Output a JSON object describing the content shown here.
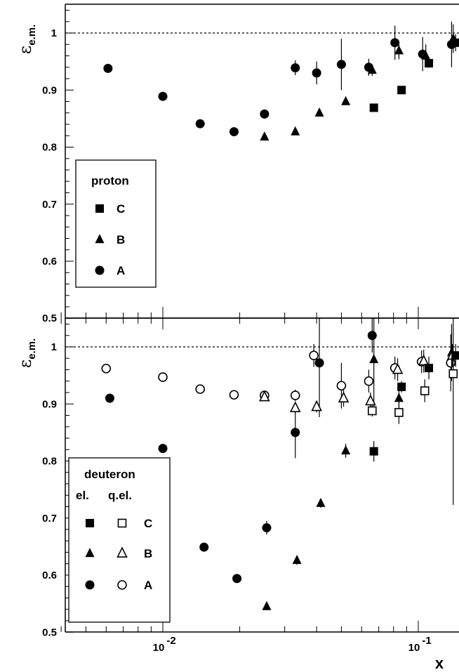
{
  "chart_data": [
    {
      "type": "scatter",
      "panel": "top",
      "ylabel_main": "ε",
      "ylabel_sub": "e.m.",
      "ylim": [
        0.5,
        1.05
      ],
      "x_scale": "log",
      "xlim": [
        0.0043,
        0.14
      ],
      "yticks": [
        0.6,
        0.7,
        0.8,
        0.9,
        1
      ],
      "ytick_labels": [
        "0.6",
        "0.7",
        "0.8",
        "0.9",
        "1"
      ],
      "reference_line": 1.0,
      "legend": {
        "title": "proton",
        "entries": [
          "C",
          "B",
          "A"
        ],
        "placement": "lower-left"
      },
      "series": [
        {
          "name": "A",
          "marker": "circle-filled",
          "points": [
            {
              "x": 0.0061,
              "y": 0.938,
              "err": 0.004
            },
            {
              "x": 0.01,
              "y": 0.889,
              "err": 0.004
            },
            {
              "x": 0.014,
              "y": 0.841,
              "err": 0.004
            },
            {
              "x": 0.019,
              "y": 0.827,
              "err": 0.004
            },
            {
              "x": 0.025,
              "y": 0.858,
              "err": 0.006
            },
            {
              "x": 0.033,
              "y": 0.939,
              "err": 0.013
            },
            {
              "x": 0.04,
              "y": 0.93,
              "err": 0.02
            },
            {
              "x": 0.05,
              "y": 0.945,
              "err": 0.045
            },
            {
              "x": 0.064,
              "y": 0.94,
              "err": 0.015
            },
            {
              "x": 0.081,
              "y": 0.983,
              "err": 0.03
            },
            {
              "x": 0.104,
              "y": 0.963,
              "err": 0.03
            },
            {
              "x": 0.135,
              "y": 0.98,
              "err": 0.04
            }
          ]
        },
        {
          "name": "B",
          "marker": "triangle-filled",
          "points": [
            {
              "x": 0.025,
              "y": 0.818,
              "err": 0.004
            },
            {
              "x": 0.033,
              "y": 0.827,
              "err": 0.004
            },
            {
              "x": 0.041,
              "y": 0.86,
              "err": 0.004
            },
            {
              "x": 0.052,
              "y": 0.88,
              "err": 0.004
            },
            {
              "x": 0.066,
              "y": 0.935,
              "err": 0.01
            },
            {
              "x": 0.084,
              "y": 0.969,
              "err": 0.015
            },
            {
              "x": 0.107,
              "y": 0.96,
              "err": 0.02
            },
            {
              "x": 0.137,
              "y": 0.99,
              "err": 0.025
            }
          ]
        },
        {
          "name": "C",
          "marker": "square-filled",
          "points": [
            {
              "x": 0.067,
              "y": 0.869,
              "err": 0.005
            },
            {
              "x": 0.086,
              "y": 0.9,
              "err": 0.005
            },
            {
              "x": 0.11,
              "y": 0.947,
              "err": 0.008
            },
            {
              "x": 0.14,
              "y": 0.983,
              "err": 0.015
            }
          ]
        }
      ]
    },
    {
      "type": "scatter",
      "panel": "bottom",
      "ylabel_main": "ε",
      "ylabel_sub": "e.m.",
      "xlabel": "x",
      "ylim": [
        0.5,
        1.05
      ],
      "x_scale": "log",
      "xlim": [
        0.0043,
        0.14
      ],
      "yticks": [
        0.5,
        0.6,
        0.7,
        0.8,
        0.9,
        1
      ],
      "ytick_labels": [
        "0.5",
        "0.6",
        "0.7",
        "0.8",
        "0.9",
        "1"
      ],
      "top_tick_label": "0.5",
      "xticks": [
        0.01,
        0.1
      ],
      "xtick_base": "10",
      "xtick_exponents": [
        "-2",
        "-1"
      ],
      "reference_line": 1.0,
      "legend": {
        "title": "deuteron",
        "col_headers": [
          "el.",
          "q.el."
        ],
        "entries": [
          "C",
          "B",
          "A"
        ],
        "placement": "lower-left"
      },
      "series": [
        {
          "name": "A",
          "marker": "circle-filled",
          "points": [
            {
              "x": 0.0062,
              "y": 0.91,
              "err": 0.004
            },
            {
              "x": 0.01,
              "y": 0.822,
              "err": 0.004
            },
            {
              "x": 0.0145,
              "y": 0.649,
              "err": 0.005
            },
            {
              "x": 0.0195,
              "y": 0.594,
              "err": 0.005
            },
            {
              "x": 0.0255,
              "y": 0.683,
              "err": 0.012
            },
            {
              "x": 0.033,
              "y": 0.85,
              "err": 0.045
            },
            {
              "x": 0.041,
              "y": 0.972,
              "err": 0.095
            },
            {
              "x": 0.066,
              "y": 1.02,
              "err": 0.03
            }
          ]
        },
        {
          "name": "A",
          "marker": "circle-open",
          "points": [
            {
              "x": 0.006,
              "y": 0.962,
              "err": 0.004
            },
            {
              "x": 0.01,
              "y": 0.947,
              "err": 0.004
            },
            {
              "x": 0.014,
              "y": 0.926,
              "err": 0.004
            },
            {
              "x": 0.019,
              "y": 0.916,
              "err": 0.004
            },
            {
              "x": 0.025,
              "y": 0.915,
              "err": 0.005
            },
            {
              "x": 0.033,
              "y": 0.915,
              "err": 0.01
            },
            {
              "x": 0.039,
              "y": 0.985,
              "err": 0.02
            },
            {
              "x": 0.05,
              "y": 0.932,
              "err": 0.04
            },
            {
              "x": 0.064,
              "y": 0.94,
              "err": 0.02
            },
            {
              "x": 0.081,
              "y": 0.963,
              "err": 0.02
            },
            {
              "x": 0.103,
              "y": 0.974,
              "err": 0.02
            },
            {
              "x": 0.134,
              "y": 0.972,
              "err": 0.05
            }
          ]
        },
        {
          "name": "B",
          "marker": "triangle-filled",
          "points": [
            {
              "x": 0.0255,
              "y": 0.545,
              "err": 0.004
            },
            {
              "x": 0.0335,
              "y": 0.626,
              "err": 0.008
            },
            {
              "x": 0.0415,
              "y": 0.726,
              "err": 0.008
            },
            {
              "x": 0.052,
              "y": 0.818,
              "err": 0.012
            },
            {
              "x": 0.067,
              "y": 0.978,
              "err": 0.09
            },
            {
              "x": 0.084,
              "y": 0.91,
              "err": 0.02
            },
            {
              "x": 0.135,
              "y": 0.99,
              "err": 0.05
            }
          ]
        },
        {
          "name": "B",
          "marker": "triangle-open",
          "points": [
            {
              "x": 0.025,
              "y": 0.912,
              "err": 0.005
            },
            {
              "x": 0.033,
              "y": 0.893,
              "err": 0.01
            },
            {
              "x": 0.04,
              "y": 0.895,
              "err": 0.01
            },
            {
              "x": 0.051,
              "y": 0.91,
              "err": 0.015
            },
            {
              "x": 0.065,
              "y": 0.905,
              "err": 0.015
            },
            {
              "x": 0.083,
              "y": 0.96,
              "err": 0.02
            },
            {
              "x": 0.105,
              "y": 0.975,
              "err": 0.02
            },
            {
              "x": 0.136,
              "y": 0.985,
              "err": 0.02
            }
          ]
        },
        {
          "name": "C",
          "marker": "square-filled",
          "points": [
            {
              "x": 0.067,
              "y": 0.817,
              "err": 0.018
            },
            {
              "x": 0.086,
              "y": 0.93,
              "err": 0.01
            },
            {
              "x": 0.11,
              "y": 0.963,
              "err": 0.02
            },
            {
              "x": 0.14,
              "y": 0.985,
              "err": 0.02
            }
          ]
        },
        {
          "name": "C",
          "marker": "square-open",
          "points": [
            {
              "x": 0.066,
              "y": 0.888,
              "err": 0.01
            },
            {
              "x": 0.084,
              "y": 0.885,
              "err": 0.02
            },
            {
              "x": 0.106,
              "y": 0.923,
              "err": 0.02
            },
            {
              "x": 0.137,
              "y": 0.953,
              "err": 0.23
            }
          ]
        }
      ]
    }
  ]
}
